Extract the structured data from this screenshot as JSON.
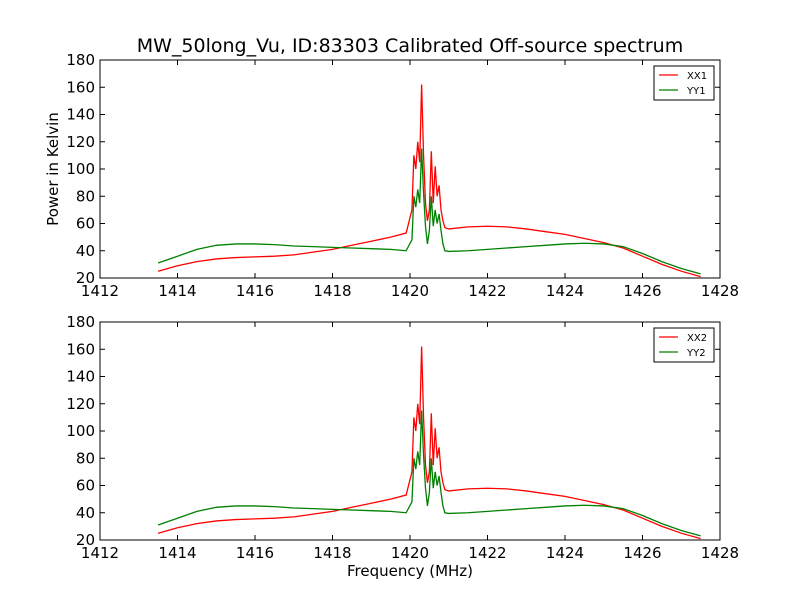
{
  "title": "MW_50long_Vu, ID:83303 Calibrated Off-source spectrum",
  "colors": {
    "xx": "#ff0000",
    "yy": "#008000"
  },
  "chart_data": [
    {
      "type": "line",
      "title": "MW_50long_Vu, ID:83303 Calibrated Off-source spectrum",
      "xlabel": "",
      "ylabel": "Power in Kelvin",
      "xlim": [
        1412,
        1428
      ],
      "ylim": [
        20,
        180
      ],
      "xticks": [
        1412,
        1414,
        1416,
        1418,
        1420,
        1422,
        1424,
        1426,
        1428
      ],
      "yticks": [
        20,
        40,
        60,
        80,
        100,
        120,
        140,
        160,
        180
      ],
      "grid": false,
      "legend_position": "top-right",
      "series": [
        {
          "name": "XX1",
          "color": "#ff0000",
          "x": [
            1413.5,
            1414.0,
            1414.5,
            1415.0,
            1415.5,
            1416.0,
            1416.5,
            1417.0,
            1417.5,
            1418.0,
            1418.5,
            1419.0,
            1419.5,
            1419.9,
            1420.05,
            1420.1,
            1420.15,
            1420.2,
            1420.25,
            1420.3,
            1420.35,
            1420.4,
            1420.45,
            1420.5,
            1420.55,
            1420.6,
            1420.65,
            1420.7,
            1420.75,
            1420.8,
            1420.85,
            1420.9,
            1421.0,
            1421.5,
            1422.0,
            1422.5,
            1423.0,
            1423.5,
            1424.0,
            1424.5,
            1425.0,
            1425.5,
            1426.0,
            1426.5,
            1427.0,
            1427.5
          ],
          "y": [
            25,
            29,
            32,
            34,
            35,
            35.5,
            36,
            37,
            39,
            41,
            44,
            47,
            50,
            53,
            70,
            110,
            100,
            120,
            105,
            162,
            110,
            75,
            62,
            70,
            113,
            75,
            102,
            80,
            88,
            70,
            62,
            57,
            56,
            57.5,
            58,
            57.5,
            56,
            54,
            52,
            49,
            46,
            42,
            36,
            30,
            25,
            21
          ]
        },
        {
          "name": "YY1",
          "color": "#008000",
          "x": [
            1413.5,
            1414.0,
            1414.5,
            1415.0,
            1415.5,
            1416.0,
            1416.5,
            1417.0,
            1417.5,
            1418.0,
            1418.5,
            1419.0,
            1419.5,
            1419.9,
            1420.05,
            1420.1,
            1420.15,
            1420.2,
            1420.25,
            1420.3,
            1420.35,
            1420.4,
            1420.45,
            1420.5,
            1420.55,
            1420.6,
            1420.65,
            1420.7,
            1420.75,
            1420.8,
            1420.85,
            1420.9,
            1421.0,
            1421.5,
            1422.0,
            1422.5,
            1423.0,
            1423.5,
            1424.0,
            1424.5,
            1425.0,
            1425.5,
            1426.0,
            1426.5,
            1427.0,
            1427.5
          ],
          "y": [
            31,
            36,
            41,
            44,
            45,
            45,
            44.5,
            43.5,
            43,
            42.5,
            42,
            41.5,
            41,
            40,
            48,
            80,
            72,
            85,
            75,
            115,
            82,
            58,
            45,
            55,
            80,
            58,
            70,
            60,
            67,
            55,
            45,
            40,
            39.5,
            40,
            41,
            42,
            43,
            44,
            45,
            45.5,
            45,
            43,
            38,
            32,
            27,
            23
          ]
        }
      ]
    },
    {
      "type": "line",
      "title": "",
      "xlabel": "Frequency (MHz)",
      "ylabel": "",
      "xlim": [
        1412,
        1428
      ],
      "ylim": [
        20,
        180
      ],
      "xticks": [
        1412,
        1414,
        1416,
        1418,
        1420,
        1422,
        1424,
        1426,
        1428
      ],
      "yticks": [
        20,
        40,
        60,
        80,
        100,
        120,
        140,
        160,
        180
      ],
      "grid": false,
      "legend_position": "top-right",
      "series": [
        {
          "name": "XX2",
          "color": "#ff0000",
          "x": [
            1413.5,
            1414.0,
            1414.5,
            1415.0,
            1415.5,
            1416.0,
            1416.5,
            1417.0,
            1417.5,
            1418.0,
            1418.5,
            1419.0,
            1419.5,
            1419.9,
            1420.05,
            1420.1,
            1420.15,
            1420.2,
            1420.25,
            1420.3,
            1420.35,
            1420.4,
            1420.45,
            1420.5,
            1420.55,
            1420.6,
            1420.65,
            1420.7,
            1420.75,
            1420.8,
            1420.85,
            1420.9,
            1421.0,
            1421.5,
            1422.0,
            1422.5,
            1423.0,
            1423.5,
            1424.0,
            1424.5,
            1425.0,
            1425.5,
            1426.0,
            1426.5,
            1427.0,
            1427.5
          ],
          "y": [
            25,
            29,
            32,
            34,
            35,
            35.5,
            36,
            37,
            39,
            41,
            44,
            47,
            50,
            53,
            70,
            110,
            100,
            120,
            105,
            162,
            110,
            75,
            62,
            70,
            113,
            75,
            102,
            80,
            88,
            70,
            62,
            57,
            56,
            57.5,
            58,
            57.5,
            56,
            54,
            52,
            49,
            46,
            42,
            36,
            30,
            25,
            21
          ]
        },
        {
          "name": "YY2",
          "color": "#008000",
          "x": [
            1413.5,
            1414.0,
            1414.5,
            1415.0,
            1415.5,
            1416.0,
            1416.5,
            1417.0,
            1417.5,
            1418.0,
            1418.5,
            1419.0,
            1419.5,
            1419.9,
            1420.05,
            1420.1,
            1420.15,
            1420.2,
            1420.25,
            1420.3,
            1420.35,
            1420.4,
            1420.45,
            1420.5,
            1420.55,
            1420.6,
            1420.65,
            1420.7,
            1420.75,
            1420.8,
            1420.85,
            1420.9,
            1421.0,
            1421.5,
            1422.0,
            1422.5,
            1423.0,
            1423.5,
            1424.0,
            1424.5,
            1425.0,
            1425.5,
            1426.0,
            1426.5,
            1427.0,
            1427.5
          ],
          "y": [
            31,
            36,
            41,
            44,
            45,
            45,
            44.5,
            43.5,
            43,
            42.5,
            42,
            41.5,
            41,
            40,
            48,
            80,
            72,
            85,
            75,
            115,
            82,
            58,
            45,
            55,
            80,
            58,
            70,
            60,
            67,
            55,
            45,
            40,
            39.5,
            40,
            41,
            42,
            43,
            44,
            45,
            45.5,
            45,
            43,
            38,
            32,
            27,
            23
          ]
        }
      ]
    }
  ]
}
